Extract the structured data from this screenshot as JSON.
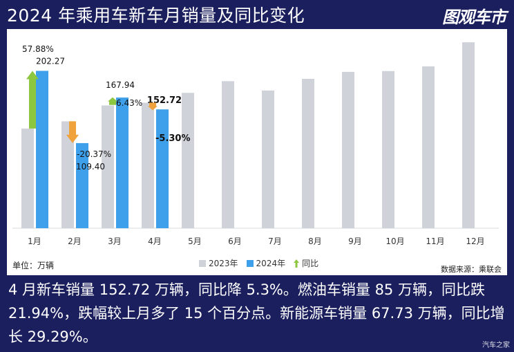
{
  "title": "2024 年乘用车新车月销量及同比变化",
  "brand_logo": "图观车市",
  "unit_label": "单位：万辆",
  "source_label": "数据来源：乘联会",
  "caption": "4 月新车销量 152.72 万辆，同比降 5.3%。燃油车销量 85 万辆，同比跌 21.94%，跌幅较上月多了 15 个百分点。新能源车销量 67.73 万辆，同比增长 29.29%。",
  "watermark": "汽车之家",
  "colors": {
    "background": "#1b1f5e",
    "series_2023": "#cfd2d9",
    "series_2024": "#3ea0ea",
    "yoy_up": "#8dc63f",
    "yoy_down": "#f0a23c"
  },
  "chart_data": {
    "type": "bar",
    "categories": [
      "1月",
      "2月",
      "3月",
      "4月",
      "5月",
      "6月",
      "7月",
      "8月",
      "9月",
      "10月",
      "11月",
      "12月"
    ],
    "ylim": [
      0,
      240
    ],
    "series": [
      {
        "name": "2023年",
        "values": [
          128.1,
          137.4,
          157.8,
          161.3,
          174.0,
          189.0,
          177.0,
          192.0,
          201.0,
          202.0,
          208.0,
          239.0
        ]
      },
      {
        "name": "2024年",
        "values": [
          202.27,
          109.4,
          167.94,
          152.72,
          null,
          null,
          null,
          null,
          null,
          null,
          null,
          null
        ]
      }
    ],
    "yoy": {
      "name": "同比",
      "values": [
        "57.88%",
        "-20.37%",
        "6.43%",
        "-5.30%"
      ],
      "direction": [
        "up",
        "down",
        "up",
        "down"
      ]
    },
    "data_labels_2024": [
      "202.27",
      "109.40",
      "167.94",
      "152.72"
    ],
    "legend_position": "bottom-center",
    "grid": false
  }
}
